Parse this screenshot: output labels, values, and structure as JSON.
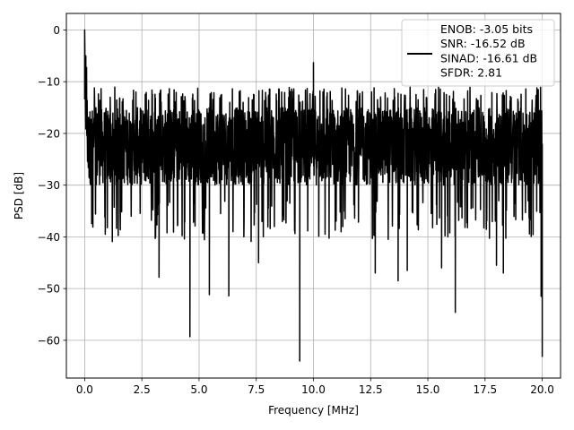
{
  "chart_data": {
    "type": "line",
    "xlabel": "Frequency [MHz]",
    "ylabel": "PSD [dB]",
    "xlim": [
      -0.8,
      20.8
    ],
    "ylim": [
      -67.3,
      3.2
    ],
    "x_ticks": [
      0.0,
      2.5,
      5.0,
      7.5,
      10.0,
      12.5,
      15.0,
      17.5,
      20.0
    ],
    "x_tick_labels": [
      "0.0",
      "2.5",
      "5.0",
      "7.5",
      "10.0",
      "12.5",
      "15.0",
      "17.5",
      "20.0"
    ],
    "y_ticks": [
      0,
      -10,
      -20,
      -30,
      -40,
      -50,
      -60
    ],
    "y_tick_labels": [
      "0",
      "−10",
      "−20",
      "−30",
      "−40",
      "−50",
      "−60"
    ],
    "grid": true,
    "legend_position": "top-right",
    "legend_entries": [
      "ENOB: -3.05 bits",
      "SNR: -16.52 dB",
      "SINAD: -16.61 dB",
      "SFDR: 2.81"
    ],
    "line_color": "#000000",
    "series": [
      {
        "x_range": [
          0.0,
          20.0
        ],
        "noise_floor_band": [
          -30,
          -15
        ],
        "peaks": [
          {
            "x": 0.0,
            "y": 0.0
          },
          {
            "x": 0.05,
            "y": -5.0
          },
          {
            "x": 10.0,
            "y": -6.3
          }
        ],
        "dips": [
          {
            "x": 0.9,
            "y": -39.5
          },
          {
            "x": 1.55,
            "y": -35.0
          },
          {
            "x": 3.25,
            "y": -47.8
          },
          {
            "x": 4.6,
            "y": -59.3
          },
          {
            "x": 5.45,
            "y": -51.2
          },
          {
            "x": 6.3,
            "y": -51.4
          },
          {
            "x": 7.6,
            "y": -45.0
          },
          {
            "x": 9.4,
            "y": -64.0
          },
          {
            "x": 12.7,
            "y": -47.0
          },
          {
            "x": 13.7,
            "y": -48.5
          },
          {
            "x": 14.1,
            "y": -46.5
          },
          {
            "x": 15.6,
            "y": -46.0
          },
          {
            "x": 16.2,
            "y": -54.6
          },
          {
            "x": 18.0,
            "y": -45.5
          },
          {
            "x": 18.3,
            "y": -47.0
          },
          {
            "x": 19.95,
            "y": -51.5
          },
          {
            "x": 20.0,
            "y": -63.2
          }
        ]
      }
    ]
  }
}
